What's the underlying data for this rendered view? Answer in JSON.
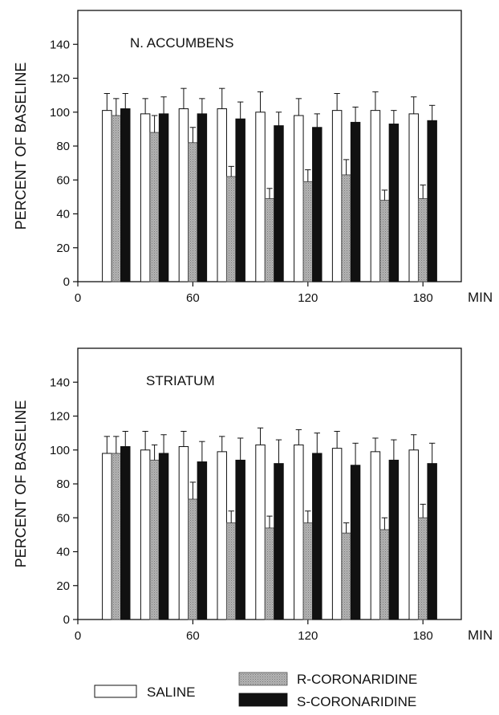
{
  "chart_data": [
    {
      "type": "bar",
      "title": "N. ACCUMBENS",
      "ylabel": "PERCENT OF BASELINE",
      "x_unit": "MIN",
      "x_ticks": [
        0,
        60,
        120,
        180
      ],
      "y_ticks": [
        0,
        20,
        40,
        60,
        80,
        100,
        120,
        140
      ],
      "ylim": [
        0,
        160
      ],
      "xlim": [
        0,
        200
      ],
      "x": [
        20,
        40,
        60,
        80,
        100,
        120,
        140,
        160,
        180
      ],
      "series": [
        {
          "name": "SALINE",
          "values": [
            101,
            99,
            102,
            102,
            100,
            98,
            101,
            101,
            99
          ],
          "errors": [
            10,
            9,
            12,
            12,
            12,
            10,
            10,
            11,
            10
          ]
        },
        {
          "name": "R-CORONARIDINE",
          "values": [
            98,
            88,
            82,
            62,
            49,
            59,
            63,
            48,
            49
          ],
          "errors": [
            10,
            10,
            9,
            6,
            6,
            7,
            9,
            6,
            8
          ]
        },
        {
          "name": "S-CORONARIDINE",
          "values": [
            102,
            99,
            99,
            96,
            92,
            91,
            94,
            93,
            95
          ],
          "errors": [
            9,
            10,
            9,
            10,
            8,
            8,
            9,
            8,
            9
          ]
        }
      ],
      "grid": false
    },
    {
      "type": "bar",
      "title": "STRIATUM",
      "ylabel": "PERCENT OF BASELINE",
      "x_unit": "MIN",
      "x_ticks": [
        0,
        60,
        120,
        180
      ],
      "y_ticks": [
        0,
        20,
        40,
        60,
        80,
        100,
        120,
        140
      ],
      "ylim": [
        0,
        160
      ],
      "xlim": [
        0,
        200
      ],
      "x": [
        20,
        40,
        60,
        80,
        100,
        120,
        140,
        160,
        180
      ],
      "series": [
        {
          "name": "SALINE",
          "values": [
            98,
            100,
            102,
            99,
            103,
            103,
            101,
            99,
            100
          ],
          "errors": [
            10,
            11,
            9,
            9,
            10,
            9,
            10,
            8,
            9
          ]
        },
        {
          "name": "R-CORONARIDINE",
          "values": [
            98,
            94,
            71,
            57,
            54,
            57,
            51,
            53,
            60
          ],
          "errors": [
            10,
            9,
            10,
            7,
            7,
            7,
            6,
            7,
            8
          ]
        },
        {
          "name": "S-CORONARIDINE",
          "values": [
            102,
            98,
            93,
            94,
            92,
            98,
            91,
            94,
            92
          ],
          "errors": [
            9,
            11,
            12,
            13,
            14,
            12,
            13,
            12,
            12
          ]
        }
      ],
      "grid": false
    }
  ],
  "legend": {
    "placement": "bottom",
    "items": [
      {
        "label": "SALINE",
        "fill": "#ffffff"
      },
      {
        "label": "R-CORONARIDINE",
        "fill": "#a9a9a9"
      },
      {
        "label": "S-CORONARIDINE",
        "fill": "#111111"
      }
    ]
  },
  "colors": {
    "saline": "#ffffff",
    "r_coronaridine": "#a9a9a9",
    "s_coronaridine": "#111111",
    "axis": "#111111"
  }
}
